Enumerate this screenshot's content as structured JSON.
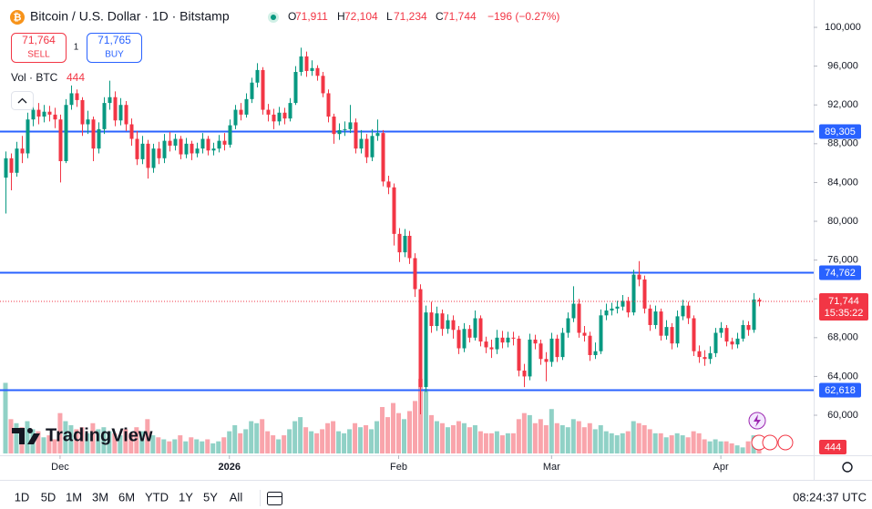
{
  "header": {
    "symbol": "Bitcoin / U.S. Dollar · 1D · Bitstamp",
    "ohlc": [
      {
        "label": "O",
        "value": "71,911"
      },
      {
        "label": "H",
        "value": "72,104"
      },
      {
        "label": "L",
        "value": "71,234"
      },
      {
        "label": "C",
        "value": "71,744"
      }
    ],
    "change": "−196 (−0.27%)"
  },
  "trade": {
    "sell_price": "71,764",
    "sell": "SELL",
    "spread": "1",
    "buy_price": "71,765",
    "buy": "BUY"
  },
  "volume_legend": {
    "label": "Vol · BTC",
    "value": "444"
  },
  "logo": "TradingView",
  "chart_data": {
    "type": "candlestick",
    "open": [
      84500,
      86500,
      85000,
      87500,
      87000,
      90500,
      91500,
      90800,
      91300,
      91000,
      90500,
      86200,
      92000,
      93200,
      92500,
      90000,
      90500,
      87500,
      89500,
      92200,
      92800,
      90400,
      92000,
      90000,
      88500,
      86400,
      88000,
      85500,
      87500,
      86500,
      88300,
      87800,
      88500,
      86900,
      88000,
      87000,
      87500,
      88500,
      87300,
      87500,
      88300,
      87900,
      89900,
      91500,
      91000,
      92600,
      94300,
      95600,
      91500,
      91000,
      90300,
      91200,
      90600,
      92200,
      95400,
      97000,
      95500,
      95800,
      95000,
      93200,
      90800,
      89000,
      89400,
      89500,
      90200,
      87500,
      88500,
      86600,
      88800,
      89100,
      84100,
      83500,
      78700,
      76800,
      78500,
      76200,
      73000,
      62900,
      70600,
      69200,
      70500,
      68900,
      69800,
      68800,
      66900,
      68900,
      68000,
      70000,
      67600,
      67000,
      66800,
      68000,
      67500,
      68000,
      67900,
      64600,
      64000,
      67800,
      67400,
      65800,
      65500,
      67900,
      66000,
      68500,
      70000,
      71500,
      68500,
      68200,
      66200,
      66600,
      70300,
      70800,
      71000,
      71200,
      71800,
      70600,
      74500,
      74000,
      71000,
      69300,
      70700,
      68200,
      69100,
      67400,
      70200,
      71300,
      70000,
      66600,
      66000,
      65800,
      66400,
      68500,
      69000,
      67600,
      67300,
      67900,
      69300,
      68800,
      71911
    ],
    "high": [
      87200,
      87000,
      88200,
      88800,
      91200,
      92500,
      92200,
      92000,
      91900,
      91700,
      91000,
      92600,
      94000,
      93600,
      92800,
      91400,
      90800,
      90200,
      92800,
      94500,
      93400,
      92700,
      92400,
      90600,
      89300,
      88800,
      88400,
      88000,
      88200,
      89000,
      89200,
      89000,
      88800,
      88600,
      88300,
      88100,
      89100,
      88800,
      88100,
      88900,
      89100,
      90500,
      92000,
      92200,
      93200,
      94800,
      96300,
      95900,
      92100,
      91600,
      91800,
      91700,
      92700,
      96000,
      97900,
      97500,
      96600,
      96100,
      95400,
      93600,
      91100,
      90100,
      90300,
      92000,
      90600,
      89400,
      89000,
      89500,
      90500,
      89400,
      84700,
      83900,
      79300,
      79200,
      79000,
      76700,
      73500,
      71300,
      71700,
      71200,
      70900,
      70400,
      70300,
      69200,
      69500,
      69300,
      70800,
      70300,
      68100,
      67800,
      68800,
      68700,
      68600,
      68600,
      68200,
      65300,
      68400,
      68300,
      67800,
      66500,
      68500,
      68300,
      69000,
      70600,
      73300,
      72000,
      69200,
      68600,
      67500,
      70900,
      71500,
      71600,
      71800,
      72400,
      72200,
      75000,
      75900,
      74400,
      71400,
      71300,
      71000,
      69800,
      69500,
      70800,
      71900,
      71700,
      70300,
      67200,
      66700,
      67100,
      69000,
      69600,
      69300,
      68000,
      68500,
      69800,
      69700,
      72600,
      72104
    ],
    "low": [
      80800,
      83200,
      84600,
      86000,
      86500,
      89800,
      90000,
      90200,
      90300,
      89600,
      84000,
      86000,
      91500,
      91800,
      88800,
      89000,
      86200,
      87000,
      89000,
      91500,
      89800,
      89900,
      89300,
      87800,
      85800,
      85900,
      84400,
      85000,
      85900,
      86000,
      87200,
      87300,
      86400,
      86500,
      86300,
      86600,
      87000,
      86800,
      86800,
      87100,
      87300,
      87600,
      89500,
      90400,
      90700,
      92200,
      93800,
      91000,
      90300,
      89500,
      89900,
      90000,
      90300,
      92000,
      95000,
      94900,
      95000,
      94500,
      92800,
      90200,
      88000,
      88400,
      88800,
      89100,
      87000,
      87000,
      86000,
      86200,
      88300,
      83600,
      82800,
      77500,
      75800,
      76300,
      75600,
      72200,
      60100,
      62400,
      68500,
      68700,
      68200,
      68400,
      67900,
      66300,
      66500,
      67500,
      67700,
      67100,
      66400,
      65900,
      66300,
      66900,
      67000,
      67200,
      64000,
      62900,
      63600,
      66800,
      65200,
      63500,
      65000,
      65500,
      65700,
      68000,
      69600,
      68000,
      67600,
      65600,
      65800,
      66300,
      69800,
      70300,
      70500,
      70800,
      70100,
      70300,
      73300,
      70500,
      68700,
      68900,
      67700,
      67800,
      66800,
      67000,
      69800,
      69400,
      66100,
      65400,
      65100,
      65300,
      66000,
      68000,
      67100,
      66800,
      66900,
      67600,
      68200,
      68500,
      71234
    ],
    "close": [
      86500,
      85000,
      87500,
      87000,
      90500,
      91500,
      90800,
      91300,
      91000,
      90500,
      86200,
      92000,
      93200,
      92500,
      90000,
      90500,
      87500,
      89500,
      92200,
      92800,
      90400,
      92000,
      90000,
      88500,
      86400,
      88000,
      85500,
      87500,
      86500,
      88300,
      87800,
      88500,
      86900,
      88000,
      87000,
      87500,
      88500,
      87300,
      87500,
      88300,
      87900,
      89900,
      91500,
      91000,
      92600,
      94300,
      95600,
      91500,
      91000,
      90300,
      91200,
      90600,
      92200,
      95400,
      97000,
      95500,
      95800,
      95000,
      93200,
      90800,
      89000,
      89400,
      89500,
      90200,
      87500,
      88500,
      86600,
      88800,
      89100,
      84100,
      83500,
      78700,
      76800,
      78500,
      76200,
      73000,
      62900,
      70600,
      69200,
      70500,
      68900,
      69800,
      68800,
      66900,
      68900,
      68000,
      70000,
      67600,
      67000,
      66800,
      68000,
      67500,
      68000,
      67900,
      64600,
      64000,
      67800,
      67400,
      65800,
      65500,
      67900,
      66000,
      68500,
      70000,
      71500,
      68500,
      68200,
      66200,
      66600,
      70300,
      70800,
      71000,
      71200,
      71800,
      70600,
      74500,
      74000,
      71000,
      69300,
      70700,
      68200,
      69100,
      67400,
      70200,
      71300,
      70000,
      66600,
      66000,
      65800,
      66400,
      68500,
      69000,
      67600,
      67300,
      67900,
      69300,
      68800,
      71940,
      71744
    ],
    "volume": [
      3500,
      1700,
      1500,
      1300,
      1600,
      1200,
      1100,
      800,
      900,
      700,
      2000,
      1600,
      1400,
      1200,
      1300,
      1000,
      1500,
      1200,
      1300,
      1100,
      1000,
      900,
      1200,
      1000,
      1300,
      1100,
      1700,
      900,
      800,
      700,
      600,
      700,
      900,
      600,
      800,
      700,
      600,
      700,
      500,
      600,
      800,
      1100,
      1400,
      1000,
      1200,
      1600,
      1500,
      1700,
      1100,
      900,
      700,
      900,
      1200,
      1600,
      1800,
      1300,
      1100,
      1000,
      1200,
      1500,
      1600,
      1100,
      1000,
      1200,
      1500,
      1300,
      1400,
      1200,
      1600,
      2300,
      1800,
      2500,
      2000,
      1700,
      2100,
      2600,
      3700,
      3200,
      1900,
      1600,
      1500,
      1300,
      1400,
      1600,
      1500,
      1300,
      1400,
      1100,
      1000,
      1000,
      1100,
      900,
      1000,
      1000,
      1700,
      2000,
      1900,
      1500,
      1700,
      1400,
      2200,
      1500,
      1400,
      1300,
      1700,
      1600,
      1300,
      1500,
      1200,
      1400,
      1100,
      1000,
      900,
      1000,
      1100,
      1600,
      1500,
      1400,
      1200,
      1000,
      1000,
      800,
      900,
      1000,
      900,
      800,
      1100,
      1000,
      700,
      600,
      700,
      600,
      600,
      500,
      400,
      300,
      600,
      900,
      444
    ],
    "up_color": "#089981",
    "down_color": "#f23645",
    "ylim": [
      55870,
      102820
    ],
    "yticks": [
      {
        "value": 60000,
        "label": "60,000"
      },
      {
        "value": 64000,
        "label": "64,000"
      },
      {
        "value": 68000,
        "label": "68,000"
      },
      {
        "value": 72000,
        "label": "72,000"
      },
      {
        "value": 76000,
        "label": "76,000"
      },
      {
        "value": 80000,
        "label": "80,000"
      },
      {
        "value": 84000,
        "label": "84,000"
      },
      {
        "value": 88000,
        "label": "88,000"
      },
      {
        "value": 92000,
        "label": "92,000"
      },
      {
        "value": 96000,
        "label": "96,000"
      },
      {
        "value": 100000,
        "label": "100,000"
      }
    ],
    "xlim": [
      -1,
      148
    ],
    "xticks": [
      {
        "value": 10,
        "label": "Dec"
      },
      {
        "value": 41,
        "label": "2026"
      },
      {
        "value": 72,
        "label": "Feb"
      },
      {
        "value": 100,
        "label": "Mar"
      },
      {
        "value": 131,
        "label": "Apr"
      }
    ],
    "grid": false,
    "hlines": [
      {
        "value": 89305,
        "label": "89,305",
        "color": "#2962ff"
      },
      {
        "value": 74762,
        "label": "74,762",
        "color": "#2962ff"
      },
      {
        "value": 62618,
        "label": "62,618",
        "color": "#2962ff"
      }
    ],
    "last_price": {
      "value": 71744,
      "label": "71,744",
      "countdown": "15:35:22"
    },
    "volume_label": "444"
  },
  "toolbar": {
    "ranges": [
      "1D",
      "5D",
      "1M",
      "3M",
      "6M",
      "YTD",
      "1Y",
      "5Y",
      "All"
    ],
    "time": "08:24:37 UTC"
  }
}
